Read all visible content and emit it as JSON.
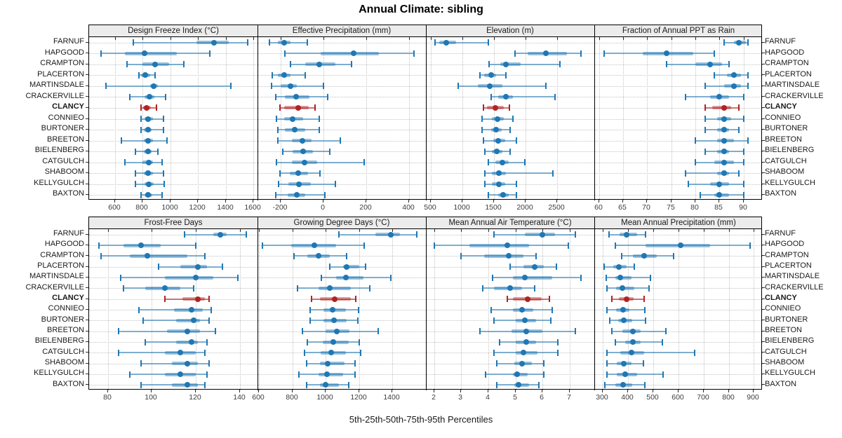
{
  "chart_data": {
    "type": "dotplot",
    "title": "Annual Climate: sibling",
    "caption": "5th-25th-50th-75th-95th Percentiles",
    "percentiles": [
      5,
      25,
      50,
      75,
      95
    ],
    "sites": [
      "FARNUF",
      "HAPGOOD",
      "CRAMPTON",
      "PLACERTON",
      "MARTINSDALE",
      "CRACKERVILLE",
      "CLANCY",
      "CONNIEO",
      "BURTONER",
      "BREETON",
      "BIELENBERG",
      "CATGULCH",
      "SHABOOM",
      "KELLYGULCH",
      "BAXTON"
    ],
    "highlight_site": "CLANCY",
    "colors": {
      "series": "#1f77b4",
      "series_light": "rgba(31,119,180,0.45)",
      "series_mid": "rgba(31,119,180,0.55)",
      "highlight": "#b22222",
      "highlight_light": "rgba(178,34,34,0.45)",
      "highlight_mid": "rgba(178,34,34,0.6)",
      "strip_bg": "#ececec",
      "grid": "#c3c3c3"
    },
    "panels": [
      {
        "title": "Design Freeze Index (°C)",
        "ticks": [
          600,
          800,
          1000,
          1200,
          1400,
          1600
        ],
        "domain": [
          415,
          1630
        ],
        "values": {
          "FARNUF": [
            735,
            1190,
            1315,
            1420,
            1560
          ],
          "HAPGOOD": [
            500,
            675,
            815,
            1050,
            1285
          ],
          "CRAMPTON": [
            690,
            800,
            890,
            990,
            1100
          ],
          "PLACERTON": [
            775,
            790,
            820,
            855,
            890
          ],
          "MARTINSDALE": [
            535,
            855,
            880,
            910,
            1440
          ],
          "CRACKERVILLE": [
            710,
            815,
            850,
            885,
            965
          ],
          "CLANCY": [
            790,
            805,
            832,
            862,
            900
          ],
          "CONNIEO": [
            790,
            815,
            842,
            875,
            950
          ],
          "BURTONER": [
            790,
            810,
            838,
            868,
            950
          ],
          "BREETON": [
            650,
            808,
            842,
            875,
            975
          ],
          "BIELENBERG": [
            750,
            808,
            838,
            868,
            910
          ],
          "CATGULCH": [
            675,
            800,
            847,
            875,
            942
          ],
          "SHABOOM": [
            750,
            808,
            842,
            875,
            950
          ],
          "KELLYGULCH": [
            750,
            817,
            847,
            880,
            958
          ],
          "BAXTON": [
            792,
            817,
            842,
            870,
            942
          ]
        }
      },
      {
        "title": "Effective Precipitation (mm)",
        "ticks": [
          -200,
          0,
          200,
          400
        ],
        "domain": [
          -310,
          480
        ],
        "values": {
          "FARNUF": [
            -255,
            -215,
            -185,
            -155,
            -75
          ],
          "HAPGOOD": [
            -180,
            -15,
            140,
            260,
            425
          ],
          "CRAMPTON": [
            -155,
            -85,
            -20,
            55,
            130
          ],
          "PLACERTON": [
            -240,
            -215,
            -185,
            -155,
            -85
          ],
          "MARTINSDALE": [
            -245,
            -200,
            -155,
            -125,
            0
          ],
          "CRACKERVILLE": [
            -225,
            -180,
            -130,
            -65,
            20
          ],
          "CLANCY": [
            -205,
            -185,
            -120,
            -70,
            -40
          ],
          "CONNIEO": [
            -220,
            -185,
            -145,
            -95,
            -20
          ],
          "BURTONER": [
            -215,
            -180,
            -135,
            -85,
            -20
          ],
          "BREETON": [
            -215,
            -150,
            -100,
            -55,
            80
          ],
          "BIELENBERG": [
            -190,
            -145,
            -95,
            -50,
            30
          ],
          "CATGULCH": [
            -220,
            -148,
            -90,
            -30,
            190
          ],
          "SHABOOM": [
            -205,
            -157,
            -120,
            -72,
            -18
          ],
          "KELLYGULCH": [
            -210,
            -165,
            -115,
            -60,
            55
          ],
          "BAXTON": [
            -225,
            -168,
            -125,
            -85,
            5
          ]
        }
      },
      {
        "title": "Elevation (m)",
        "ticks": [
          500,
          1000,
          1500,
          2000,
          2500
        ],
        "domain": [
          425,
          3090
        ],
        "values": {
          "FARNUF": [
            570,
            640,
            750,
            900,
            1415
          ],
          "HAPGOOD": [
            1840,
            2030,
            2320,
            2655,
            2875
          ],
          "CRAMPTON": [
            1420,
            1600,
            1695,
            1925,
            2545
          ],
          "PLACERTON": [
            1275,
            1345,
            1455,
            1540,
            1695
          ],
          "MARTINSDALE": [
            935,
            1245,
            1430,
            1640,
            2320
          ],
          "CRACKERVILLE": [
            1455,
            1565,
            1695,
            1805,
            2470
          ],
          "CLANCY": [
            1330,
            1390,
            1525,
            1655,
            1750
          ],
          "CONNIEO": [
            1315,
            1470,
            1555,
            1655,
            1805
          ],
          "BURTONER": [
            1315,
            1455,
            1540,
            1620,
            1760
          ],
          "BREETON": [
            1330,
            1490,
            1565,
            1675,
            1860
          ],
          "BIELENBERG": [
            1355,
            1470,
            1550,
            1640,
            1760
          ],
          "CATGULCH": [
            1415,
            1525,
            1630,
            1730,
            1990
          ],
          "SHABOOM": [
            1355,
            1470,
            1575,
            1695,
            2440
          ],
          "KELLYGULCH": [
            1355,
            1470,
            1575,
            1675,
            1860
          ],
          "BAXTON": [
            1415,
            1565,
            1650,
            1740,
            1860
          ]
        }
      },
      {
        "title": "Fraction of Annual PPT as Rain",
        "ticks": [
          60,
          65,
          70,
          75,
          80,
          85,
          90
        ],
        "domain": [
          59,
          94
        ],
        "values": {
          "FARNUF": [
            86,
            88,
            89,
            90.5,
            91
          ],
          "HAPGOOD": [
            61,
            69,
            74,
            79.5,
            84
          ],
          "CRAMPTON": [
            74,
            80,
            83,
            85.5,
            87
          ],
          "PLACERTON": [
            84,
            86.5,
            88,
            89.5,
            91
          ],
          "MARTINSDALE": [
            82,
            86,
            88,
            89.5,
            91
          ],
          "CRACKERVILLE": [
            78,
            83,
            85,
            87,
            90
          ],
          "CLANCY": [
            82,
            83.5,
            86,
            87.5,
            89
          ],
          "CONNIEO": [
            82,
            84.5,
            86,
            87.5,
            90
          ],
          "BURTONER": [
            82,
            84.5,
            86,
            87,
            89
          ],
          "BREETON": [
            80,
            84.5,
            86,
            88,
            91
          ],
          "BIELENBERG": [
            82,
            84.5,
            86,
            87,
            90
          ],
          "CATGULCH": [
            80,
            84,
            86,
            88,
            90
          ],
          "SHABOOM": [
            78,
            84.5,
            86,
            87,
            89
          ],
          "KELLYGULCH": [
            78.5,
            83,
            85,
            87,
            90
          ],
          "BAXTON": [
            81,
            84,
            85,
            87,
            90
          ]
        }
      },
      {
        "title": "Frost-Free Days",
        "ticks": [
          80,
          100,
          120,
          140
        ],
        "domain": [
          71.5,
          148
        ],
        "values": {
          "FARNUF": [
            115,
            128,
            131,
            134,
            143
          ],
          "HAPGOOD": [
            76,
            87,
            95,
            104,
            120
          ],
          "CRAMPTON": [
            77,
            90,
            98,
            116,
            124
          ],
          "PLACERTON": [
            103,
            113,
            121,
            125,
            132
          ],
          "MARTINSDALE": [
            86,
            106,
            120,
            128,
            139
          ],
          "CRACKERVILLE": [
            87,
            97,
            106,
            113,
            119
          ],
          "CLANCY": [
            106,
            114,
            121,
            124,
            126
          ],
          "CONNIEO": [
            94,
            110,
            118,
            123,
            127
          ],
          "BURTONER": [
            96,
            111,
            119,
            122,
            126
          ],
          "BREETON": [
            85,
            107,
            116,
            122,
            129
          ],
          "BIELENBERG": [
            97,
            111,
            118,
            121,
            125
          ],
          "CATGULCH": [
            85,
            106,
            113,
            120,
            124
          ],
          "SHABOOM": [
            95,
            109,
            116,
            121,
            126
          ],
          "KELLYGULCH": [
            90,
            106,
            113,
            120,
            125
          ],
          "BAXTON": [
            95,
            109,
            116,
            121,
            124
          ]
        }
      },
      {
        "title": "Growing Degree Days (°C)",
        "ticks": [
          600,
          800,
          1000,
          1200,
          1400
        ],
        "domain": [
          590,
          1600
        ],
        "values": {
          "FARNUF": [
            1080,
            1295,
            1390,
            1445,
            1545
          ],
          "HAPGOOD": [
            620,
            790,
            930,
            1060,
            1230
          ],
          "CRAMPTON": [
            810,
            890,
            955,
            1025,
            1125
          ],
          "PLACERTON": [
            1025,
            1105,
            1125,
            1200,
            1240
          ],
          "MARTINSDALE": [
            975,
            1060,
            1120,
            1225,
            1390
          ],
          "CRACKERVILLE": [
            830,
            955,
            1025,
            1150,
            1265
          ],
          "CLANCY": [
            915,
            965,
            1055,
            1150,
            1180
          ],
          "CONNIEO": [
            905,
            985,
            1040,
            1120,
            1195
          ],
          "BURTONER": [
            905,
            985,
            1050,
            1125,
            1190
          ],
          "BREETON": [
            860,
            1000,
            1065,
            1140,
            1315
          ],
          "BIELENBERG": [
            890,
            980,
            1045,
            1135,
            1200
          ],
          "CATGULCH": [
            870,
            970,
            1030,
            1120,
            1210
          ],
          "SHABOOM": [
            885,
            965,
            1010,
            1110,
            1175
          ],
          "KELLYGULCH": [
            840,
            955,
            1005,
            1105,
            1175
          ],
          "BAXTON": [
            885,
            965,
            1000,
            1080,
            1135
          ]
        }
      },
      {
        "title": "Mean Annual Air Temperature (°C)",
        "ticks": [
          2,
          3,
          4,
          5,
          6,
          7
        ],
        "domain": [
          1.7,
          7.9
        ],
        "values": {
          "FARNUF": [
            4.2,
            5.35,
            6.0,
            6.45,
            7.2
          ],
          "HAPGOOD": [
            2.0,
            3.3,
            4.7,
            5.5,
            6.95
          ],
          "CRAMPTON": [
            3.0,
            3.85,
            4.75,
            5.3,
            5.75
          ],
          "PLACERTON": [
            4.8,
            5.3,
            5.7,
            6.05,
            6.5
          ],
          "MARTINSDALE": [
            4.15,
            4.9,
            5.35,
            6.35,
            7.4
          ],
          "CRACKERVILLE": [
            3.8,
            4.2,
            4.8,
            5.25,
            5.7
          ],
          "CLANCY": [
            4.7,
            4.9,
            5.45,
            5.95,
            6.25
          ],
          "CONNIEO": [
            4.1,
            4.9,
            5.25,
            5.65,
            6.35
          ],
          "BURTONER": [
            4.2,
            5.0,
            5.35,
            5.75,
            6.3
          ],
          "BREETON": [
            3.7,
            4.85,
            5.4,
            6.0,
            7.2
          ],
          "BIELENBERG": [
            4.4,
            5.0,
            5.4,
            5.75,
            6.55
          ],
          "CATGULCH": [
            4.2,
            5.0,
            5.3,
            5.8,
            6.55
          ],
          "SHABOOM": [
            4.3,
            4.95,
            5.25,
            5.6,
            6.05
          ],
          "KELLYGULCH": [
            3.9,
            4.9,
            5.05,
            5.45,
            6.05
          ],
          "BAXTON": [
            4.3,
            4.95,
            5.1,
            5.5,
            5.85
          ]
        }
      },
      {
        "title": "Mean Annual Precipitation (mm)",
        "ticks": [
          300,
          400,
          500,
          600,
          700,
          800,
          900
        ],
        "domain": [
          266,
          935
        ],
        "values": {
          "FARNUF": [
            325,
            365,
            395,
            435,
            470
          ],
          "HAPGOOD": [
            350,
            470,
            610,
            725,
            885
          ],
          "CRAMPTON": [
            375,
            420,
            465,
            515,
            580
          ],
          "PLACERTON": [
            305,
            340,
            363,
            393,
            426
          ],
          "MARTINSDALE": [
            312,
            350,
            370,
            415,
            490
          ],
          "CRACKERVILLE": [
            315,
            352,
            377,
            426,
            484
          ],
          "CLANCY": [
            337,
            363,
            395,
            423,
            465
          ],
          "CONNIEO": [
            317,
            352,
            380,
            405,
            468
          ],
          "BURTONER": [
            328,
            361,
            384,
            416,
            470
          ],
          "BREETON": [
            335,
            377,
            419,
            449,
            550
          ],
          "BIELENBERG": [
            349,
            389,
            419,
            449,
            535
          ],
          "CATGULCH": [
            315,
            368,
            414,
            465,
            665
          ],
          "SHABOOM": [
            317,
            354,
            384,
            414,
            462
          ],
          "KELLYGULCH": [
            317,
            356,
            389,
            437,
            540
          ],
          "BAXTON": [
            309,
            349,
            380,
            417,
            468
          ]
        }
      }
    ]
  }
}
